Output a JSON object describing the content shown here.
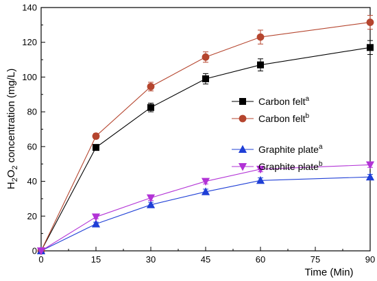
{
  "chart_data": {
    "type": "line",
    "title": "",
    "xlabel": "Time (Min)",
    "ylabel": {
      "main": "H",
      "sub1": "2",
      "mid": "O",
      "sub2": "2",
      "tail": " concentration (mg/L)"
    },
    "xlim": [
      0,
      90
    ],
    "ylim": [
      0,
      140
    ],
    "xticks": [
      0,
      15,
      30,
      45,
      60,
      75,
      90
    ],
    "yticks": [
      0,
      20,
      40,
      60,
      80,
      100,
      120,
      140
    ],
    "grid": false,
    "legend_position": "right",
    "series": [
      {
        "name": "Carbon felt",
        "sup": "a",
        "color": "#000000",
        "marker": "square",
        "x": [
          0,
          15,
          30,
          45,
          60,
          90
        ],
        "y": [
          0,
          59.5,
          82.5,
          99,
          107,
          117
        ],
        "err": [
          0,
          1.5,
          2.5,
          3,
          3.5,
          4
        ]
      },
      {
        "name": "Carbon felt",
        "sup": "b",
        "color": "#b5452e",
        "marker": "circle",
        "x": [
          0,
          15,
          30,
          45,
          60,
          90
        ],
        "y": [
          0,
          66,
          94.5,
          111.5,
          123,
          131.5
        ],
        "err": [
          0,
          1.5,
          2.5,
          3,
          4,
          4
        ]
      },
      {
        "name": "Graphite plate",
        "sup": "a",
        "color": "#1f3fd6",
        "marker": "triangle-up",
        "x": [
          0,
          15,
          30,
          45,
          60,
          90
        ],
        "y": [
          0,
          15.5,
          26.5,
          34,
          40.5,
          42.5
        ],
        "err": [
          0,
          1,
          1.5,
          1.5,
          1.5,
          1.5
        ]
      },
      {
        "name": "Graphite plate",
        "sup": "b",
        "color": "#b233d6",
        "marker": "triangle-down",
        "x": [
          0,
          15,
          30,
          45,
          60,
          90
        ],
        "y": [
          0,
          19.5,
          30.5,
          40,
          47,
          49.5
        ],
        "err": [
          0,
          1,
          1.5,
          1.5,
          1.5,
          1.5
        ]
      }
    ]
  }
}
